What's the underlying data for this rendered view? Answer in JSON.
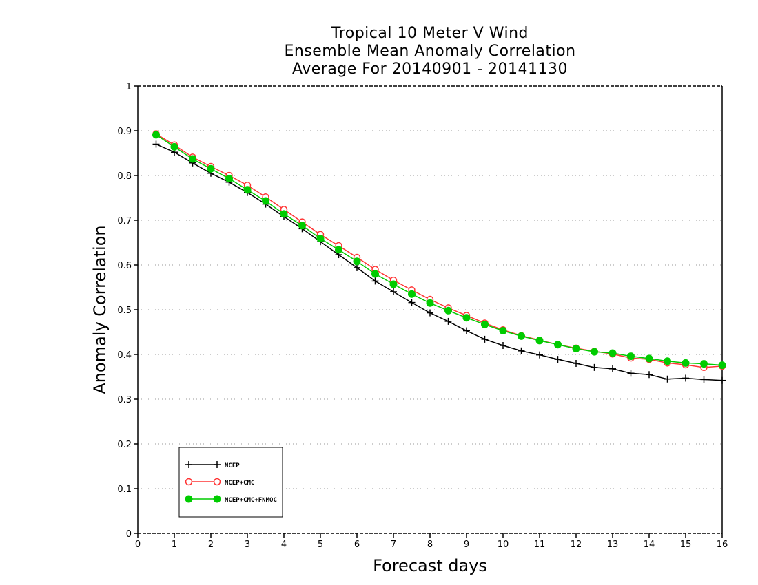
{
  "chart_data": {
    "type": "line",
    "title": [
      "Tropical 10 Meter V Wind",
      "Ensemble Mean Anomaly Correlation",
      "Average For 20140901 - 20141130"
    ],
    "xlabel": "Forecast days",
    "ylabel": "Anomaly Correlation",
    "xlim": [
      0,
      16
    ],
    "ylim": [
      0,
      1
    ],
    "xticks": [
      "0",
      "1",
      "2",
      "3",
      "4",
      "5",
      "6",
      "7",
      "8",
      "9",
      "10",
      "11",
      "12",
      "13",
      "14",
      "15",
      "16"
    ],
    "yticks": [
      "0",
      "0.1",
      "0.2",
      "0.3",
      "0.4",
      "0.5",
      "0.6",
      "0.7",
      "0.8",
      "0.9",
      "1"
    ],
    "grid": "dotted horizontal",
    "legend_position": "bottom-left",
    "x": [
      0.5,
      1,
      1.5,
      2,
      2.5,
      3,
      3.5,
      4,
      4.5,
      5,
      5.5,
      6,
      6.5,
      7,
      7.5,
      8,
      8.5,
      9,
      9.5,
      10,
      10.5,
      11,
      11.5,
      12,
      12.5,
      13,
      13.5,
      14,
      14.5,
      15,
      15.5,
      16
    ],
    "series": [
      {
        "name": "NCEP",
        "color": "#000000",
        "marker": "plus",
        "values": [
          0.87,
          0.852,
          0.828,
          0.805,
          0.785,
          0.762,
          0.736,
          0.708,
          0.681,
          0.652,
          0.623,
          0.594,
          0.564,
          0.54,
          0.516,
          0.493,
          0.474,
          0.453,
          0.434,
          0.42,
          0.408,
          0.399,
          0.389,
          0.38,
          0.371,
          0.368,
          0.358,
          0.355,
          0.345,
          0.347,
          0.344,
          0.342
        ]
      },
      {
        "name": "NCEP+CMC",
        "color": "#ff3333",
        "marker": "open-circle",
        "values": [
          0.893,
          0.868,
          0.841,
          0.82,
          0.8,
          0.778,
          0.752,
          0.724,
          0.696,
          0.668,
          0.643,
          0.617,
          0.59,
          0.566,
          0.544,
          0.523,
          0.504,
          0.487,
          0.47,
          0.455,
          0.442,
          0.432,
          0.422,
          0.414,
          0.407,
          0.401,
          0.392,
          0.389,
          0.381,
          0.377,
          0.371,
          0.374
        ]
      },
      {
        "name": "NCEP+CMC+FNMOC",
        "color": "#00cc00",
        "marker": "filled-circle",
        "values": [
          0.891,
          0.864,
          0.837,
          0.815,
          0.793,
          0.768,
          0.743,
          0.714,
          0.688,
          0.659,
          0.634,
          0.608,
          0.58,
          0.557,
          0.535,
          0.515,
          0.498,
          0.482,
          0.467,
          0.453,
          0.441,
          0.431,
          0.422,
          0.413,
          0.406,
          0.403,
          0.396,
          0.391,
          0.385,
          0.381,
          0.379,
          0.376
        ]
      }
    ]
  }
}
